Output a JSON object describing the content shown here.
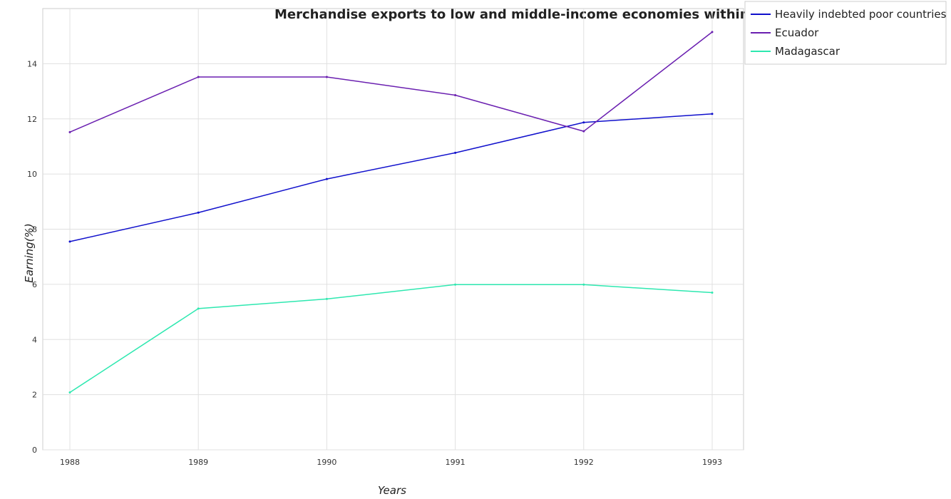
{
  "chart_data": {
    "type": "line",
    "title": "Merchandise exports to low and middle-income economies within region",
    "xlabel": "Years",
    "ylabel": "Earning(%)",
    "x": [
      "1988",
      "1989",
      "1990",
      "1991",
      "1992",
      "1993"
    ],
    "ylim": [
      0,
      16
    ],
    "yticks": [
      0,
      2,
      4,
      6,
      8,
      10,
      12,
      14
    ],
    "grid": true,
    "legend_position": "top-right",
    "series": [
      {
        "name": "Heavily indebted poor countries",
        "color": "#1010cc",
        "values": [
          7.55,
          8.6,
          9.82,
          10.77,
          11.87,
          12.18
        ]
      },
      {
        "name": "Ecuador",
        "color": "#6a1fb0",
        "values": [
          11.52,
          13.52,
          13.52,
          12.86,
          11.55,
          15.15
        ]
      },
      {
        "name": "Madagascar",
        "color": "#2ee8b0",
        "values": [
          2.08,
          5.12,
          5.47,
          5.99,
          5.99,
          5.7
        ]
      }
    ]
  }
}
